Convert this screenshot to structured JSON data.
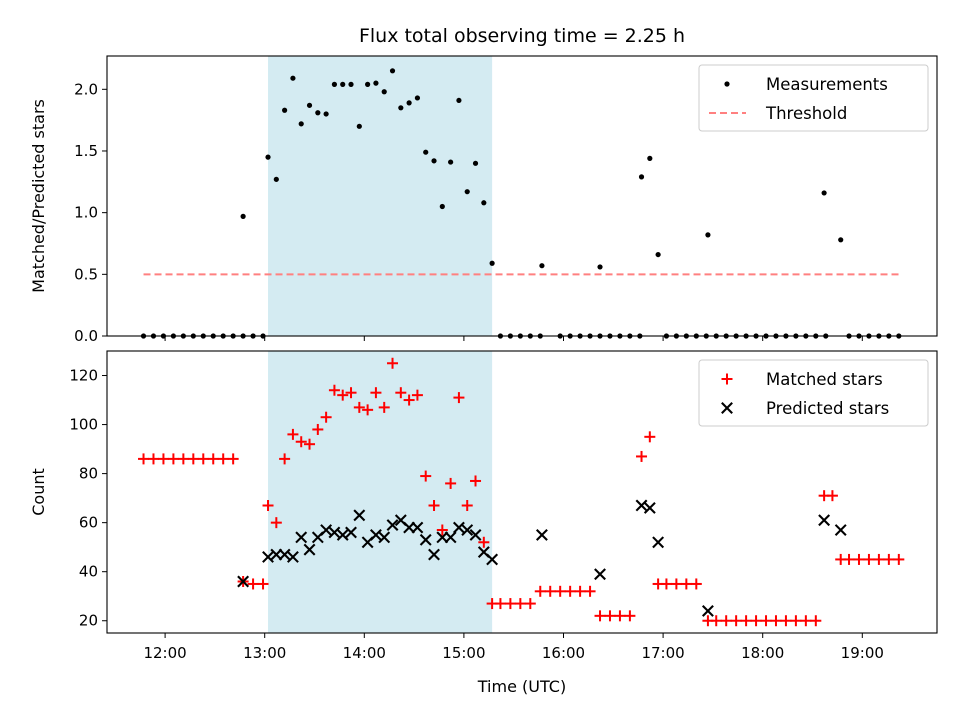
{
  "chart_data": {
    "type": "scatter",
    "title": "Flux total observing time = 2.25 h",
    "xlabel": "Time (UTC)",
    "x_unit": "hours UTC",
    "xlim": [
      "11:25",
      "19:45"
    ],
    "xticks": [
      "12:00",
      "13:00",
      "14:00",
      "15:00",
      "16:00",
      "17:00",
      "18:00",
      "19:00"
    ],
    "highlight_span": {
      "start": "13:02",
      "end": "15:17",
      "color": "#add8e6"
    },
    "panels": [
      {
        "ylabel": "Matched/Predicted stars",
        "ylim": [
          0,
          2.27
        ],
        "yticks": [
          "0.0",
          "0.5",
          "1.0",
          "1.5",
          "2.0"
        ],
        "legend_position": "upper right",
        "series": [
          {
            "name": "Measurements",
            "style": "dot",
            "color": "#000000",
            "points": [
              [
                "11:47",
                0
              ],
              [
                "11:53",
                0
              ],
              [
                "11:59",
                0
              ],
              [
                "12:05",
                0
              ],
              [
                "12:11",
                0
              ],
              [
                "12:17",
                0
              ],
              [
                "12:23",
                0
              ],
              [
                "12:29",
                0
              ],
              [
                "12:35",
                0
              ],
              [
                "12:41",
                0
              ],
              [
                "12:47",
                0
              ],
              [
                "12:53",
                0
              ],
              [
                "12:59",
                0
              ],
              [
                "12:47",
                0.97
              ],
              [
                "13:02",
                1.45
              ],
              [
                "13:07",
                1.27
              ],
              [
                "13:12",
                1.83
              ],
              [
                "13:17",
                2.09
              ],
              [
                "13:22",
                1.72
              ],
              [
                "13:27",
                1.87
              ],
              [
                "13:32",
                1.81
              ],
              [
                "13:37",
                1.8
              ],
              [
                "13:42",
                2.04
              ],
              [
                "13:47",
                2.04
              ],
              [
                "13:52",
                2.04
              ],
              [
                "13:57",
                1.7
              ],
              [
                "14:02",
                2.04
              ],
              [
                "14:07",
                2.05
              ],
              [
                "14:12",
                1.98
              ],
              [
                "14:17",
                2.15
              ],
              [
                "14:22",
                1.85
              ],
              [
                "14:27",
                1.89
              ],
              [
                "14:32",
                1.93
              ],
              [
                "14:37",
                1.49
              ],
              [
                "14:42",
                1.42
              ],
              [
                "14:47",
                1.05
              ],
              [
                "14:52",
                1.41
              ],
              [
                "14:57",
                1.91
              ],
              [
                "15:02",
                1.17
              ],
              [
                "15:07",
                1.4
              ],
              [
                "15:12",
                1.08
              ],
              [
                "15:17",
                0.59
              ],
              [
                "15:22",
                0
              ],
              [
                "15:28",
                0
              ],
              [
                "15:34",
                0
              ],
              [
                "15:40",
                0
              ],
              [
                "15:46",
                0
              ],
              [
                "15:47",
                0.57
              ],
              [
                "15:58",
                0
              ],
              [
                "16:04",
                0
              ],
              [
                "16:10",
                0
              ],
              [
                "16:16",
                0
              ],
              [
                "16:22",
                0
              ],
              [
                "16:22",
                0.56
              ],
              [
                "16:28",
                0
              ],
              [
                "16:34",
                0
              ],
              [
                "16:40",
                0
              ],
              [
                "16:46",
                0
              ],
              [
                "16:47",
                1.29
              ],
              [
                "16:52",
                1.44
              ],
              [
                "16:57",
                0.66
              ],
              [
                "17:02",
                0
              ],
              [
                "17:08",
                0
              ],
              [
                "17:14",
                0
              ],
              [
                "17:20",
                0
              ],
              [
                "17:26",
                0
              ],
              [
                "17:27",
                0.82
              ],
              [
                "17:32",
                0
              ],
              [
                "17:38",
                0
              ],
              [
                "17:44",
                0
              ],
              [
                "17:50",
                0
              ],
              [
                "17:56",
                0
              ],
              [
                "18:02",
                0
              ],
              [
                "18:08",
                0
              ],
              [
                "18:14",
                0
              ],
              [
                "18:20",
                0
              ],
              [
                "18:26",
                0
              ],
              [
                "18:32",
                0
              ],
              [
                "18:38",
                0
              ],
              [
                "18:37",
                1.16
              ],
              [
                "18:47",
                0.78
              ],
              [
                "18:52",
                0
              ],
              [
                "18:58",
                0
              ],
              [
                "19:04",
                0
              ],
              [
                "19:10",
                0
              ],
              [
                "19:16",
                0
              ],
              [
                "19:22",
                0
              ]
            ]
          },
          {
            "name": "Threshold",
            "style": "dashed-line",
            "color": "#ff8080",
            "points": [
              [
                "11:47",
                0.5
              ],
              [
                "19:22",
                0.5
              ]
            ]
          }
        ]
      },
      {
        "ylabel": "Count",
        "ylim": [
          15,
          130
        ],
        "yticks": [
          "20",
          "40",
          "60",
          "80",
          "100",
          "120"
        ],
        "legend_position": "upper right",
        "series": [
          {
            "name": "Matched stars",
            "style": "plus",
            "color": "#ff0000",
            "points": [
              [
                "11:47",
                86
              ],
              [
                "11:53",
                86
              ],
              [
                "11:59",
                86
              ],
              [
                "12:05",
                86
              ],
              [
                "12:11",
                86
              ],
              [
                "12:17",
                86
              ],
              [
                "12:23",
                86
              ],
              [
                "12:29",
                86
              ],
              [
                "12:35",
                86
              ],
              [
                "12:41",
                86
              ],
              [
                "12:47",
                36
              ],
              [
                "12:53",
                35
              ],
              [
                "12:59",
                35
              ],
              [
                "13:02",
                67
              ],
              [
                "13:07",
                60
              ],
              [
                "13:12",
                86
              ],
              [
                "13:17",
                96
              ],
              [
                "13:22",
                93
              ],
              [
                "13:27",
                92
              ],
              [
                "13:32",
                98
              ],
              [
                "13:37",
                103
              ],
              [
                "13:42",
                114
              ],
              [
                "13:47",
                112
              ],
              [
                "13:52",
                113
              ],
              [
                "13:57",
                107
              ],
              [
                "14:02",
                106
              ],
              [
                "14:07",
                113
              ],
              [
                "14:12",
                107
              ],
              [
                "14:17",
                125
              ],
              [
                "14:22",
                113
              ],
              [
                "14:27",
                110
              ],
              [
                "14:32",
                112
              ],
              [
                "14:37",
                79
              ],
              [
                "14:42",
                67
              ],
              [
                "14:47",
                57
              ],
              [
                "14:52",
                76
              ],
              [
                "14:57",
                111
              ],
              [
                "15:02",
                67
              ],
              [
                "15:07",
                77
              ],
              [
                "15:12",
                52
              ],
              [
                "15:17",
                27
              ],
              [
                "15:22",
                27
              ],
              [
                "15:28",
                27
              ],
              [
                "15:34",
                27
              ],
              [
                "15:40",
                27
              ],
              [
                "15:46",
                32
              ],
              [
                "15:52",
                32
              ],
              [
                "15:58",
                32
              ],
              [
                "16:04",
                32
              ],
              [
                "16:10",
                32
              ],
              [
                "16:16",
                32
              ],
              [
                "16:22",
                22
              ],
              [
                "16:28",
                22
              ],
              [
                "16:34",
                22
              ],
              [
                "16:40",
                22
              ],
              [
                "16:47",
                87
              ],
              [
                "16:52",
                95
              ],
              [
                "16:57",
                35
              ],
              [
                "17:02",
                35
              ],
              [
                "17:08",
                35
              ],
              [
                "17:14",
                35
              ],
              [
                "17:20",
                35
              ],
              [
                "17:27",
                20
              ],
              [
                "17:32",
                20
              ],
              [
                "17:38",
                20
              ],
              [
                "17:44",
                20
              ],
              [
                "17:50",
                20
              ],
              [
                "17:56",
                20
              ],
              [
                "18:02",
                20
              ],
              [
                "18:08",
                20
              ],
              [
                "18:14",
                20
              ],
              [
                "18:20",
                20
              ],
              [
                "18:26",
                20
              ],
              [
                "18:32",
                20
              ],
              [
                "18:37",
                71
              ],
              [
                "18:42",
                71
              ],
              [
                "18:47",
                45
              ],
              [
                "18:52",
                45
              ],
              [
                "18:58",
                45
              ],
              [
                "19:04",
                45
              ],
              [
                "19:10",
                45
              ],
              [
                "19:16",
                45
              ],
              [
                "19:22",
                45
              ]
            ]
          },
          {
            "name": "Predicted stars",
            "style": "x",
            "color": "#000000",
            "points": [
              [
                "12:47",
                36
              ],
              [
                "13:02",
                46
              ],
              [
                "13:07",
                47
              ],
              [
                "13:12",
                47
              ],
              [
                "13:17",
                46
              ],
              [
                "13:22",
                54
              ],
              [
                "13:27",
                49
              ],
              [
                "13:32",
                54
              ],
              [
                "13:37",
                57
              ],
              [
                "13:42",
                56
              ],
              [
                "13:47",
                55
              ],
              [
                "13:52",
                56
              ],
              [
                "13:57",
                63
              ],
              [
                "14:02",
                52
              ],
              [
                "14:07",
                55
              ],
              [
                "14:12",
                54
              ],
              [
                "14:17",
                59
              ],
              [
                "14:22",
                61
              ],
              [
                "14:27",
                58
              ],
              [
                "14:32",
                58
              ],
              [
                "14:37",
                53
              ],
              [
                "14:42",
                47
              ],
              [
                "14:47",
                54
              ],
              [
                "14:52",
                54
              ],
              [
                "14:57",
                58
              ],
              [
                "15:02",
                57
              ],
              [
                "15:07",
                55
              ],
              [
                "15:12",
                48
              ],
              [
                "15:17",
                45
              ],
              [
                "15:47",
                55
              ],
              [
                "16:22",
                39
              ],
              [
                "16:47",
                67
              ],
              [
                "16:52",
                66
              ],
              [
                "16:57",
                52
              ],
              [
                "17:27",
                24
              ],
              [
                "18:37",
                61
              ],
              [
                "18:47",
                57
              ]
            ]
          }
        ]
      }
    ]
  }
}
